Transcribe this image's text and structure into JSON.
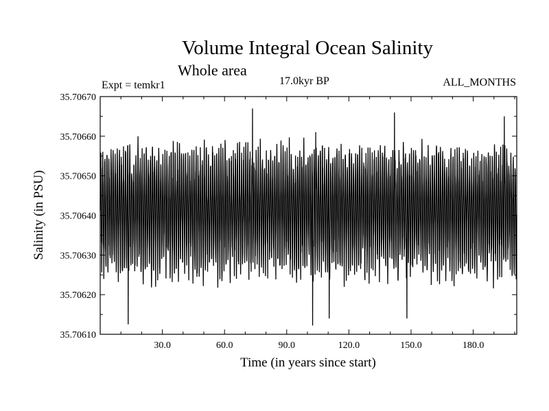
{
  "chart_data": {
    "type": "line",
    "title": "Volume Integral Ocean Salinity",
    "subtitle": "Whole area",
    "annotations": {
      "experiment": "Expt = temkr1",
      "period": "17.0kyr BP",
      "months": "ALL_MONTHS"
    },
    "xlabel": "Time (in years since start)",
    "ylabel": "Salinity (in PSU)",
    "xlim": [
      0,
      201
    ],
    "ylim": [
      35.7061,
      35.7067
    ],
    "xticks": [
      30,
      60,
      90,
      120,
      150,
      180
    ],
    "xtick_labels": [
      "30.0",
      "60.0",
      "90.0",
      "120.0",
      "150.0",
      "180.0"
    ],
    "yticks": [
      35.7061,
      35.7062,
      35.7063,
      35.7064,
      35.7065,
      35.7066,
      35.7067
    ],
    "ytick_labels": [
      "35.70610",
      "35.70620",
      "35.70630",
      "35.70640",
      "35.70650",
      "35.70660",
      "35.70670"
    ],
    "series": [
      {
        "sampling": "monthly",
        "mean": 35.70642,
        "typical_max": 35.70658,
        "typical_min": 35.70624,
        "extremes": [
          {
            "x": 13.5,
            "y": 35.706125
          },
          {
            "x": 73.5,
            "y": 35.70667
          },
          {
            "x": 102.5,
            "y": 35.706122
          },
          {
            "x": 104.0,
            "y": 35.70661
          },
          {
            "x": 110.5,
            "y": 35.70614
          },
          {
            "x": 142.0,
            "y": 35.70666
          },
          {
            "x": 148.0,
            "y": 35.70614
          },
          {
            "x": 195.0,
            "y": 35.70665
          }
        ]
      }
    ]
  }
}
